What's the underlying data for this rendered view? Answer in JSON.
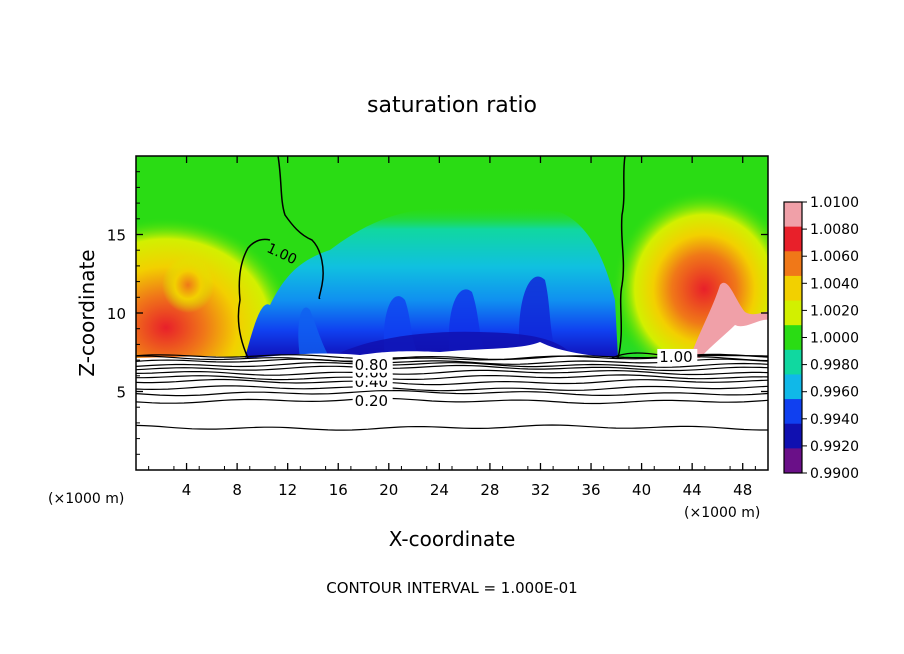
{
  "chart_data": {
    "type": "heatmap",
    "title": "saturation ratio",
    "xlabel": "X-coordinate",
    "ylabel": "Z-coordinate",
    "x_unit_label": "(×1000 m)",
    "y_unit_label": "(×1000 m)",
    "footer": "CONTOUR INTERVAL = 1.000E-01",
    "xlim": [
      0,
      50
    ],
    "ylim": [
      0,
      20
    ],
    "x_ticks": [
      4,
      8,
      12,
      16,
      20,
      24,
      28,
      32,
      36,
      40,
      44,
      48
    ],
    "y_ticks": [
      5,
      10,
      15
    ],
    "colorbar": {
      "levels": [
        1.01,
        1.008,
        1.006,
        1.004,
        1.002,
        1.0,
        0.998,
        0.996,
        0.994,
        0.992,
        0.99
      ],
      "labels": [
        "1.0100",
        "1.0080",
        "1.0060",
        "1.0040",
        "1.0020",
        "1.0000",
        "0.9980",
        "0.9960",
        "0.9940",
        "0.9920",
        "0.9900"
      ],
      "colors": [
        "#f0a0a8",
        "#e8202a",
        "#f07818",
        "#f2d000",
        "#d2f000",
        "#2adc14",
        "#10d8a0",
        "#10b8e8",
        "#1040f0",
        "#1010b0",
        "#6a1088"
      ]
    },
    "contour_lines": [
      {
        "level": 0.2,
        "z": 4.4,
        "label": "0.20",
        "label_x": 17.3
      },
      {
        "level": 0.4,
        "z": 5.6,
        "label": "0.40",
        "label_x": 17.3
      },
      {
        "level": 0.6,
        "z": 6.2,
        "label": "0.60",
        "label_x": 17.3
      },
      {
        "level": 0.8,
        "z": 6.7,
        "label": "0.80",
        "label_x": 17.3
      },
      {
        "level": 1.0,
        "z": 7.2,
        "label": "1.00",
        "label_x": 41.4
      }
    ],
    "extra_contours": [
      2.7,
      4.9,
      5.2,
      5.9,
      6.5,
      6.9,
      7.1
    ],
    "contour_label_extra": {
      "label": "1.00",
      "x": 12.5,
      "z": 14.0
    }
  }
}
